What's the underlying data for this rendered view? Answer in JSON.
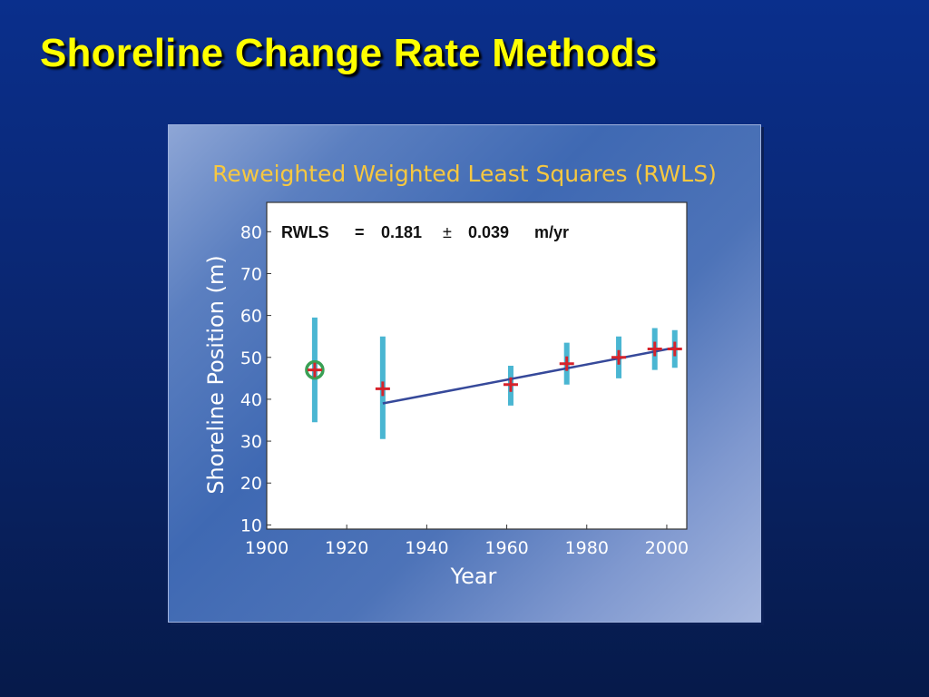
{
  "slide": {
    "title": "Shoreline Change Rate Methods",
    "background_color": "#0a2f8c",
    "title_color": "#ffff00"
  },
  "chart_data": {
    "type": "scatter",
    "title": "Reweighted Weighted Least Squares (RWLS)",
    "xlabel": "Year",
    "ylabel": "Shoreline Position (m)",
    "xlim": [
      1900,
      2005
    ],
    "ylim": [
      9,
      87
    ],
    "x_ticks": [
      1900,
      1920,
      1940,
      1960,
      1980,
      2000
    ],
    "y_ticks": [
      10,
      20,
      30,
      40,
      50,
      60,
      70,
      80
    ],
    "grid": false,
    "annotation": {
      "label": "RWLS",
      "equals": "=",
      "value": "0.181",
      "pm": "±",
      "uncertainty": "0.039",
      "unit": "m/yr"
    },
    "points": [
      {
        "x": 1912,
        "y": 47,
        "err_low": 34.5,
        "err_high": 59.5,
        "outlier": true
      },
      {
        "x": 1929,
        "y": 42.5,
        "err_low": 30.5,
        "err_high": 55,
        "outlier": false
      },
      {
        "x": 1961,
        "y": 43.5,
        "err_low": 38.5,
        "err_high": 48,
        "outlier": false
      },
      {
        "x": 1975,
        "y": 48.5,
        "err_low": 43.5,
        "err_high": 53.5,
        "outlier": false
      },
      {
        "x": 1988,
        "y": 50,
        "err_low": 45,
        "err_high": 55,
        "outlier": false
      },
      {
        "x": 1997,
        "y": 52,
        "err_low": 47,
        "err_high": 57,
        "outlier": false
      },
      {
        "x": 2002,
        "y": 52,
        "err_low": 47.5,
        "err_high": 56.5,
        "outlier": false
      }
    ],
    "fit_line": {
      "x": [
        1929,
        2002
      ],
      "y": [
        39,
        52.3
      ]
    },
    "colors": {
      "error_bar": "#4ab6d2",
      "marker": "#d6232b",
      "fit_line": "#36499a",
      "outlier_ring": "#3aa055",
      "title": "#f7c840"
    }
  }
}
